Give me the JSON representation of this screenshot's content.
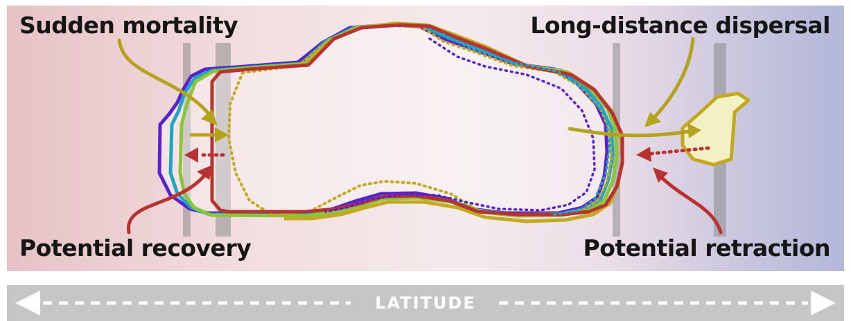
{
  "labels": {
    "sudden_mortality": "Sudden mortality",
    "long_distance_dispersal": "Long-distance dispersal",
    "potential_recovery": "Potential recovery",
    "potential_retraction": "Potential retraction"
  },
  "axis": {
    "label": "LATITUDE"
  },
  "colors": {
    "purple_outline": "#5a22c8",
    "cyan_outline": "#1fa5c4",
    "green_outline": "#8cc43a",
    "olive_outline": "#c2a91f",
    "red_outline": "#b83232",
    "arrow_olive": "#b5a21f",
    "arrow_red": "#b83232",
    "edge_bar": "#8c8c8c",
    "latitude_bar": "#c6c6c6"
  }
}
